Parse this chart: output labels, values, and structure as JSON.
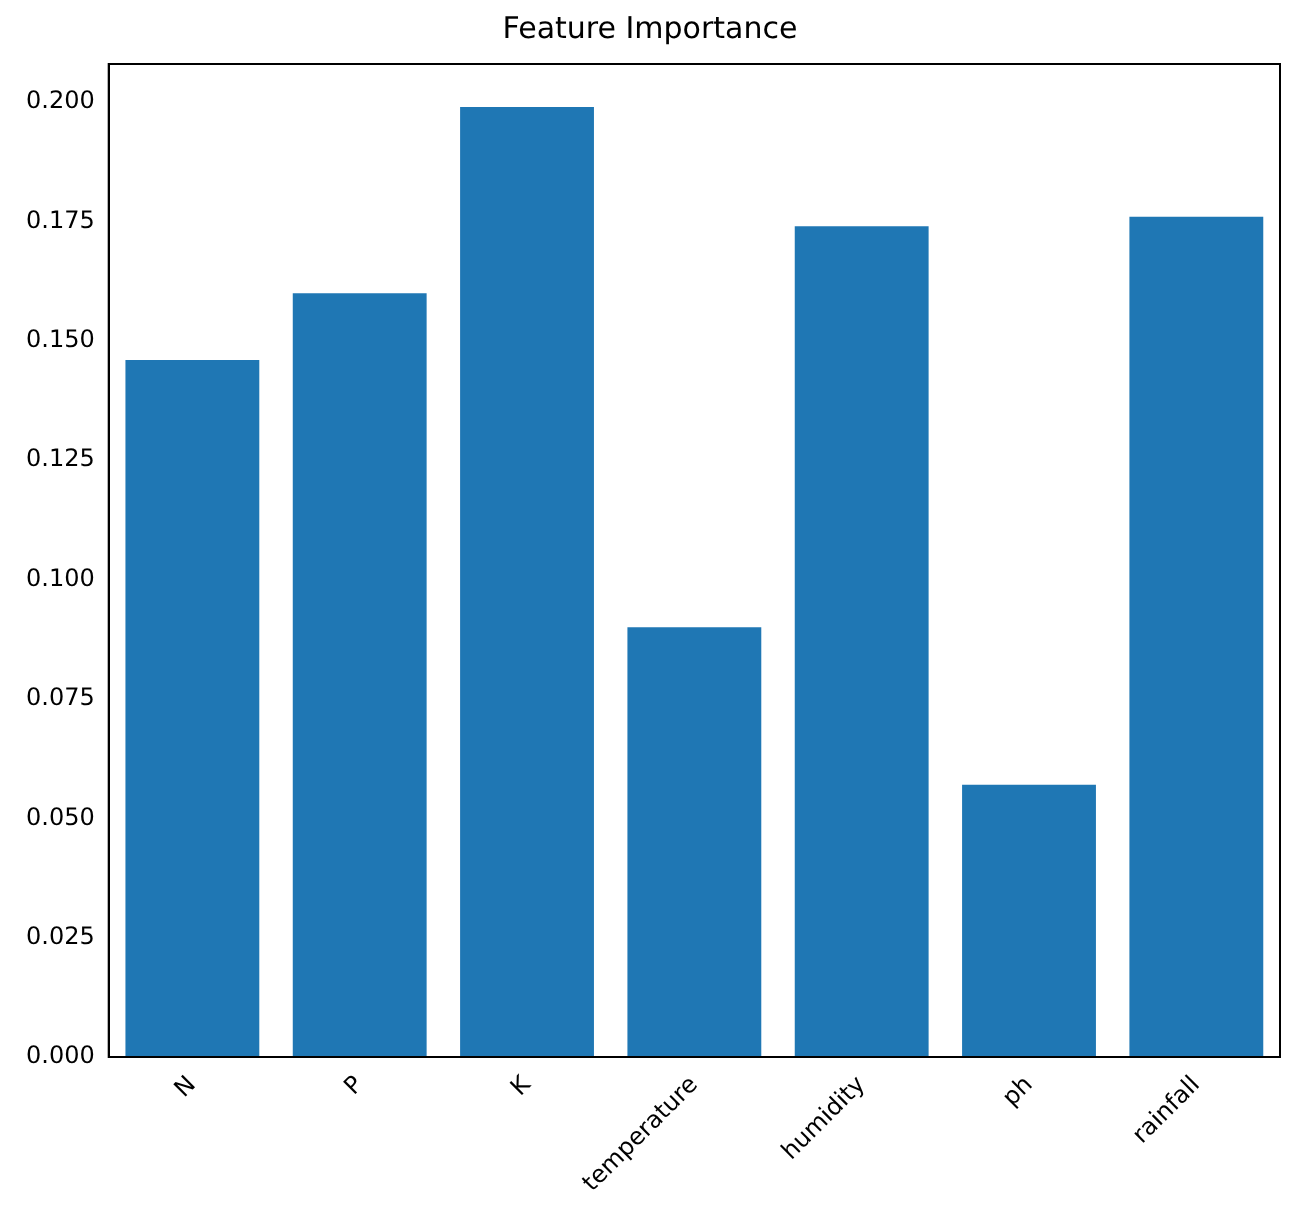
{
  "chart_data": {
    "type": "bar",
    "title": "Feature Importance",
    "categories": [
      "N",
      "P",
      "K",
      "temperature",
      "humidity",
      "ph",
      "rainfall"
    ],
    "values": [
      0.146,
      0.16,
      0.199,
      0.09,
      0.174,
      0.057,
      0.176
    ],
    "color": "#1f77b4",
    "ylim": [
      0,
      0.208
    ],
    "yticks": [
      {
        "value": 0,
        "label": "0.000"
      },
      {
        "value": 0.025,
        "label": "0.025"
      },
      {
        "value": 0.05,
        "label": "0.050"
      },
      {
        "value": 0.075,
        "label": "0.075"
      },
      {
        "value": 0.1,
        "label": "0.100"
      },
      {
        "value": 0.125,
        "label": "0.125"
      },
      {
        "value": 0.15,
        "label": "0.150"
      },
      {
        "value": 0.175,
        "label": "0.175"
      },
      {
        "value": 0.2,
        "label": "0.200"
      }
    ],
    "grid": false,
    "legend": false
  }
}
